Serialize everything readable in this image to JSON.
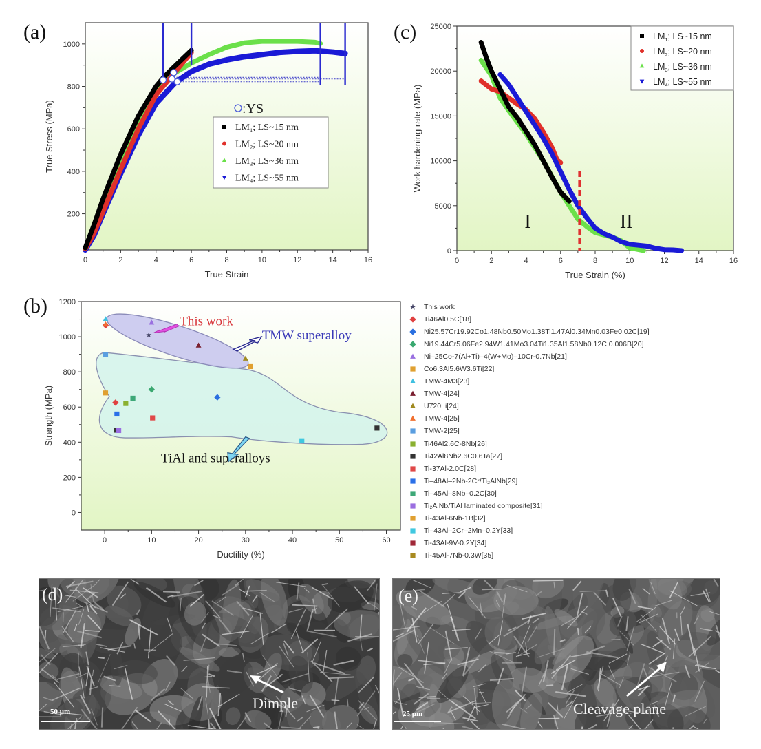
{
  "panels": {
    "a": {
      "label": "(a)"
    },
    "b": {
      "label": "(b)"
    },
    "c": {
      "label": "(c)"
    },
    "d": {
      "label": "(d)",
      "annotation": "Dimple",
      "scale": "50 μm"
    },
    "e": {
      "label": "(e)",
      "annotation": "Cleavage plane",
      "scale": "25 μm"
    }
  },
  "colors": {
    "LM1": "#000000",
    "LM2": "#e0302a",
    "LM3": "#6be04a",
    "LM4": "#1a1ad6",
    "plot_bg_top": "#ffffff",
    "plot_bg_bottom": "#e2f5c4",
    "tmw_region": "#c9c8ee",
    "tial_region": "#d4f3ec",
    "this_work_text": "#d8353a",
    "tmw_text": "#3a3ab8",
    "divider": "#e03030"
  },
  "chart_data": [
    {
      "id": "a",
      "type": "line",
      "title": "",
      "xlabel": "True Strain",
      "ylabel": "True Stress (MPa)",
      "xlim": [
        0,
        16
      ],
      "ylim": [
        30,
        1100
      ],
      "xticks": [
        0,
        2,
        4,
        6,
        8,
        10,
        12,
        14,
        16
      ],
      "yticks": [
        200,
        400,
        600,
        800,
        1000
      ],
      "grid": false,
      "legend_position": "center-right",
      "annotation": "o:YS",
      "series": [
        {
          "name": "LM1; LS~15 nm",
          "marker": "square",
          "color": "#000000",
          "x": [
            0,
            0.5,
            1,
            2,
            3,
            4,
            4.4,
            5,
            5.5,
            6
          ],
          "y": [
            40,
            150,
            270,
            480,
            660,
            800,
            840,
            890,
            930,
            970
          ]
        },
        {
          "name": "LM2; LS~20 nm",
          "marker": "circle",
          "color": "#e0302a",
          "x": [
            0,
            0.5,
            1,
            2,
            3,
            4,
            4.9,
            5.5,
            6
          ],
          "y": [
            35,
            110,
            210,
            410,
            600,
            760,
            850,
            910,
            960
          ]
        },
        {
          "name": "LM3; LS~36 nm",
          "marker": "triangle-up",
          "color": "#6be04a",
          "x": [
            0,
            0.5,
            1,
            2,
            3,
            4,
            5,
            6,
            7,
            8,
            9,
            10,
            11,
            12,
            13,
            13.3
          ],
          "y": [
            35,
            120,
            230,
            440,
            630,
            780,
            860,
            910,
            950,
            985,
            1005,
            1012,
            1012,
            1012,
            1008,
            1002
          ]
        },
        {
          "name": "LM4; LS~55 nm",
          "marker": "triangle-down",
          "color": "#1a1ad6",
          "x": [
            0,
            0.5,
            1,
            2,
            3,
            4,
            5,
            5.2,
            6,
            7,
            8,
            9,
            10,
            11,
            12,
            13,
            13.5,
            14,
            14.7
          ],
          "y": [
            30,
            100,
            200,
            390,
            570,
            720,
            810,
            825,
            870,
            905,
            925,
            940,
            950,
            960,
            965,
            968,
            965,
            962,
            955
          ]
        }
      ],
      "yield_strength_points": [
        {
          "x": 4.4,
          "y": 830
        },
        {
          "x": 4.9,
          "y": 835
        },
        {
          "x": 5.0,
          "y": 865
        },
        {
          "x": 5.2,
          "y": 822
        }
      ],
      "vertical_markers": [
        {
          "x": 4.4,
          "y_low": 830
        },
        {
          "x": 6.0,
          "y_low": 900
        },
        {
          "x": 13.3,
          "y_low": 808
        },
        {
          "x": 14.7,
          "y_low": 808
        }
      ],
      "dotted_lines": [
        {
          "x1": 4.4,
          "x2": 6.0,
          "y": 972
        },
        {
          "x1": 5.0,
          "x2": 13.3,
          "y": 848
        },
        {
          "x1": 5.0,
          "x2": 13.3,
          "y": 842
        },
        {
          "x1": 5.2,
          "x2": 14.7,
          "y": 835
        },
        {
          "x1": 5.2,
          "x2": 13.3,
          "y": 822
        }
      ]
    },
    {
      "id": "c",
      "type": "line",
      "title": "",
      "xlabel": "True Strain (%)",
      "ylabel": "Work hardening rate (MPa)",
      "xlim": [
        0,
        16
      ],
      "ylim": [
        0,
        25000
      ],
      "xticks": [
        0,
        2,
        4,
        6,
        8,
        10,
        12,
        14,
        16
      ],
      "yticks": [
        0,
        5000,
        10000,
        15000,
        20000,
        25000
      ],
      "grid": false,
      "legend_position": "upper-right",
      "stage_divider_x": 7.1,
      "stage_labels": [
        {
          "text": "I",
          "x": 4.1,
          "y": 3300
        },
        {
          "text": "II",
          "x": 9.8,
          "y": 3300
        }
      ],
      "series": [
        {
          "name": "LM1; LS~15 nm",
          "marker": "square",
          "color": "#000000",
          "x": [
            1.4,
            1.7,
            2.0,
            2.5,
            3.0,
            3.5,
            4.0,
            4.5,
            5.0,
            5.5,
            6.0,
            6.5
          ],
          "y": [
            23200,
            21500,
            20000,
            18000,
            16000,
            14800,
            13300,
            11800,
            10000,
            8200,
            6500,
            5500
          ]
        },
        {
          "name": "LM2; LS~20 nm",
          "marker": "circle",
          "color": "#e0302a",
          "x": [
            1.4,
            2.0,
            2.5,
            3.0,
            3.5,
            4.0,
            4.5,
            5.0,
            5.5,
            5.8,
            6.0
          ],
          "y": [
            18900,
            18000,
            17700,
            17000,
            16300,
            15700,
            14700,
            13200,
            11500,
            10100,
            9800
          ]
        },
        {
          "name": "LM3; LS~36 nm",
          "marker": "triangle-up",
          "color": "#6be04a",
          "x": [
            1.4,
            2.0,
            2.5,
            3.0,
            4.0,
            5.0,
            6.0,
            7.0,
            7.5,
            8.0,
            9.0,
            9.5,
            10.0,
            10.8
          ],
          "y": [
            21200,
            19500,
            17000,
            15600,
            13000,
            10000,
            6500,
            3500,
            2700,
            2000,
            1500,
            1100,
            300,
            0
          ]
        },
        {
          "name": "LM4; LS~55 nm",
          "marker": "triangle-down",
          "color": "#1a1ad6",
          "x": [
            2.5,
            3.0,
            3.5,
            4.0,
            4.5,
            5.0,
            5.5,
            6.0,
            6.5,
            7.0,
            7.5,
            8.0,
            8.5,
            9.0,
            9.5,
            10.0,
            10.5,
            11.0,
            11.5,
            12.0,
            12.5,
            13.0
          ],
          "y": [
            19600,
            18500,
            17000,
            15500,
            14000,
            12500,
            10800,
            8800,
            6800,
            5000,
            3700,
            2500,
            1900,
            1500,
            1000,
            700,
            600,
            500,
            250,
            100,
            80,
            0
          ]
        }
      ]
    },
    {
      "id": "b",
      "type": "scatter",
      "title": "",
      "xlabel": "Ductility (%)",
      "ylabel": "Strength (MPa)",
      "xlim": [
        -5,
        63
      ],
      "ylim": [
        -100,
        1200
      ],
      "xticks": [
        0,
        10,
        20,
        30,
        40,
        50,
        60
      ],
      "yticks": [
        0,
        200,
        400,
        600,
        800,
        1000,
        1200
      ],
      "grid": false,
      "legend_position": "outside-right",
      "annotations": [
        {
          "text": "This work",
          "x": 16,
          "y": 1080,
          "color": "#d8353a"
        },
        {
          "text": "TMW superalloy",
          "x": 33,
          "y": 1000,
          "color": "#3a3ab8"
        },
        {
          "text": "TiAl and superalloys",
          "x": 12,
          "y": 300,
          "color": "#111111"
        }
      ],
      "series": [
        {
          "name": "This work",
          "marker": "star",
          "color": "#444466",
          "x": [
            9.4
          ],
          "y": [
            1010
          ]
        },
        {
          "name": "Ti46Al0.5C[18]",
          "marker": "diamond",
          "color": "#e04040",
          "x": [
            0.2,
            2.3
          ],
          "y": [
            1065,
            625
          ]
        },
        {
          "name": "Ni25.57Cr19.92Co1.48Nb0.50Mo1.38Ti1.47Al0.34Mn0.03Fe0.02C[19]",
          "marker": "diamond",
          "color": "#2a6fe0",
          "x": [
            24
          ],
          "y": [
            655
          ]
        },
        {
          "name": "Ni19.44Cr5.06Fe2.94W1.41Mo3.04Ti1.35Al1.58Nb0.12C 0.006B[20]",
          "marker": "diamond",
          "color": "#3aa870",
          "x": [
            10
          ],
          "y": [
            700
          ]
        },
        {
          "name": "Ni-25Co-7(Al+Ti)-4(W+Mo)-10Cr-0.7Nb[21]",
          "marker": "triangle-up",
          "color": "#9a70e0",
          "x": [
            10
          ],
          "y": [
            1080
          ]
        },
        {
          "name": "Co6.3Al5.6W3.6Ti[22]",
          "marker": "square",
          "color": "#e0a030",
          "x": [
            31
          ],
          "y": [
            830
          ]
        },
        {
          "name": "TMW-4M3[23]",
          "marker": "triangle-up",
          "color": "#40c0e0",
          "x": [
            0.2
          ],
          "y": [
            1100
          ]
        },
        {
          "name": "TMW-4[24]",
          "marker": "triangle-up",
          "color": "#7a2030",
          "x": [
            20
          ],
          "y": [
            950
          ]
        },
        {
          "name": "U720Li[24]",
          "marker": "triangle-up",
          "color": "#a08a20",
          "x": [
            30
          ],
          "y": [
            875
          ]
        },
        {
          "name": "TMW-4[25]",
          "marker": "triangle-up",
          "color": "#f07030",
          "x": [
            0.2
          ],
          "y": [
            1070
          ]
        },
        {
          "name": "TMW-2[25]",
          "marker": "square",
          "color": "#5a9ee0",
          "x": [
            0.2
          ],
          "y": [
            900
          ]
        },
        {
          "name": "Ti46Al2.6C-8Nb[26]",
          "marker": "square",
          "color": "#8ab030",
          "x": [
            4.5
          ],
          "y": [
            620
          ]
        },
        {
          "name": "Ti42Al8Nb2.6C0.6Ta[27]",
          "marker": "square",
          "color": "#333333",
          "x": [
            2.5,
            58
          ],
          "y": [
            468,
            480
          ]
        },
        {
          "name": "Ti-37Al-2.0C[28]",
          "marker": "square",
          "color": "#e04848",
          "x": [
            10.2
          ],
          "y": [
            538
          ]
        },
        {
          "name": "Ti-48Al-2Nb-2Cr/Ti2AlNb[29]",
          "marker": "square",
          "color": "#2a70e8",
          "x": [
            2.6
          ],
          "y": [
            560
          ]
        },
        {
          "name": "Ti-45Al-8Nb-0.2C[30]",
          "marker": "square",
          "color": "#3ea878",
          "x": [
            6
          ],
          "y": [
            650
          ]
        },
        {
          "name": "Ti2AlNb/TiAl laminated composite[31]",
          "marker": "square",
          "color": "#9a6ee0",
          "x": [
            3
          ],
          "y": [
            466
          ]
        },
        {
          "name": "Ti-43Al-6Nb-1B[32]",
          "marker": "square",
          "color": "#e0a030",
          "x": [
            0.2
          ],
          "y": [
            680
          ]
        },
        {
          "name": "Ti-43Al-2Cr-2Mn-0.2Y[33]",
          "marker": "square",
          "color": "#40c8e0",
          "x": [
            42
          ],
          "y": [
            408
          ]
        },
        {
          "name": "Ti-43Al-9V-0.2Y[34]",
          "marker": "square",
          "color": "#a02838",
          "x": [],
          "y": []
        },
        {
          "name": "Ti-45Al-7Nb-0.3W[35]",
          "marker": "square",
          "color": "#a88a20",
          "x": [],
          "y": []
        }
      ]
    }
  ],
  "legend_b_display": [
    {
      "marker": "star",
      "color": "#444466",
      "label": "This work"
    },
    {
      "marker": "diamond",
      "color": "#e04040",
      "label": "Ti46Al0.5C[18]"
    },
    {
      "marker": "diamond",
      "color": "#2a6fe0",
      "label": "Ni25.57Cr19.92Co1.48Nb0.50Mo1.38Ti1.47Al0.34Mn0.03Fe0.02C[19]"
    },
    {
      "marker": "diamond",
      "color": "#3aa870",
      "label": "Ni19.44Cr5.06Fe2.94W1.41Mo3.04Ti1.35Al1.58Nb0.12C 0.006B[20]"
    },
    {
      "marker": "triangle-up",
      "color": "#9a70e0",
      "label": "Ni–25Co-7(Al+Ti)–4(W+Mo)–10Cr-0.7Nb[21]"
    },
    {
      "marker": "square",
      "color": "#e0a030",
      "label": "Co6.3Al5.6W3.6Ti[22]"
    },
    {
      "marker": "triangle-up",
      "color": "#40c0e0",
      "label": "TMW-4M3[23]"
    },
    {
      "marker": "triangle-up",
      "color": "#7a2030",
      "label": "TMW-4[24]"
    },
    {
      "marker": "triangle-up",
      "color": "#a08a20",
      "label": "U720Li[24]"
    },
    {
      "marker": "triangle-up",
      "color": "#f07030",
      "label": "TMW-4[25]"
    },
    {
      "marker": "square",
      "color": "#5a9ee0",
      "label": "TMW-2[25]"
    },
    {
      "marker": "square",
      "color": "#8ab030",
      "label": "Ti46Al2.6C-8Nb[26]"
    },
    {
      "marker": "square",
      "color": "#333333",
      "label": "Ti42Al8Nb2.6C0.6Ta[27]"
    },
    {
      "marker": "square",
      "color": "#e04848",
      "label": "Ti-37Al-2.0C[28]"
    },
    {
      "marker": "square",
      "color": "#2a70e8",
      "label": "Ti–48Al–2Nb-2Cr/Ti₂AlNb[29]"
    },
    {
      "marker": "square",
      "color": "#3ea878",
      "label": "Ti–45Al–8Nb–0.2C[30]"
    },
    {
      "marker": "square",
      "color": "#9a6ee0",
      "label": "Ti₂AlNb/TiAl laminated composite[31]"
    },
    {
      "marker": "square",
      "color": "#e0a030",
      "label": "Ti-43Al-6Nb-1B[32]"
    },
    {
      "marker": "square",
      "color": "#40c8e0",
      "label": "Ti–43Al–2Cr–2Mn–0.2Y[33]"
    },
    {
      "marker": "square",
      "color": "#a02838",
      "label": "Ti-43Al-9V-0.2Y[34]"
    },
    {
      "marker": "square",
      "color": "#a88a20",
      "label": "Ti-45Al-7Nb-0.3W[35]"
    }
  ],
  "legend_lm": [
    {
      "marker": "square",
      "color": "#000000",
      "main": "LM",
      "sub": "1",
      "rest": "; LS~15 nm"
    },
    {
      "marker": "circle",
      "color": "#e0302a",
      "main": "LM",
      "sub": "2",
      "rest": "; LS~20 nm"
    },
    {
      "marker": "triangle-up",
      "color": "#6be04a",
      "main": "LM",
      "sub": "3",
      "rest": "; LS~36 nm"
    },
    {
      "marker": "triangle-down",
      "color": "#1a1ad6",
      "main": "LM",
      "sub": "4",
      "rest": "; LS~55 nm"
    }
  ]
}
